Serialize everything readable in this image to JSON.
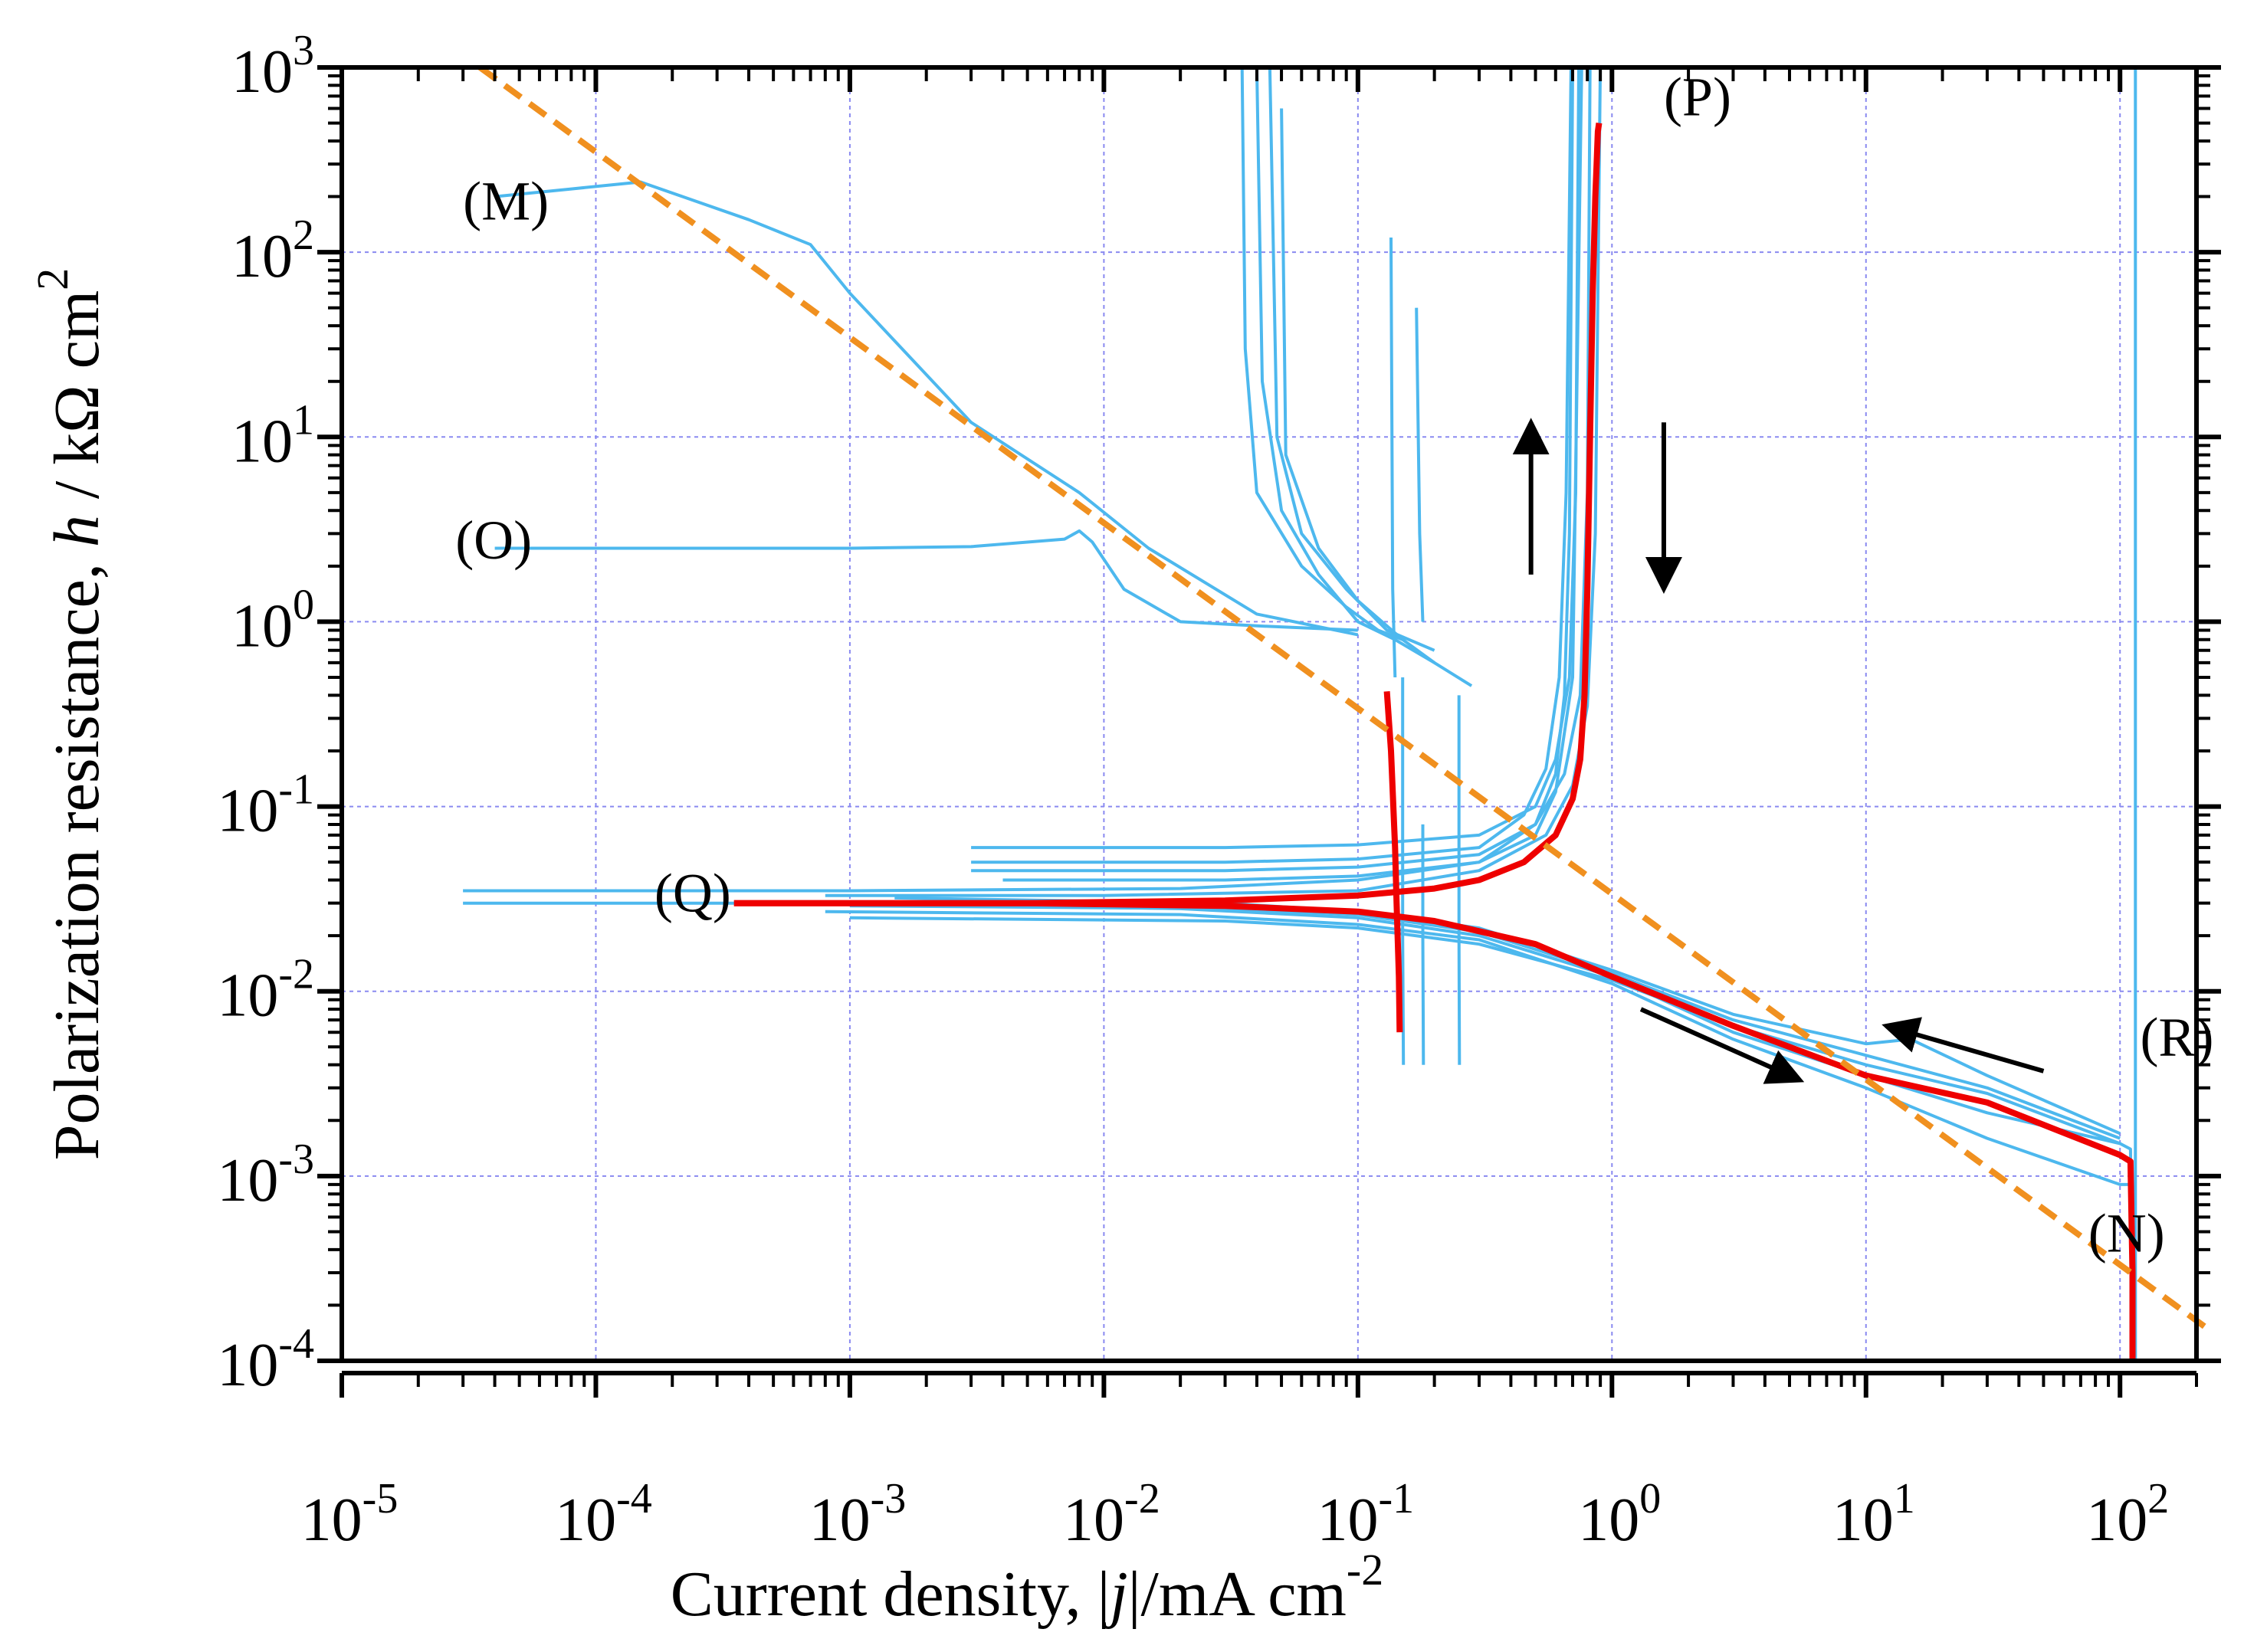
{
  "chart_data": {
    "type": "line",
    "xscale": "log",
    "yscale": "log",
    "xlim": [
      1e-05,
      200
    ],
    "ylim": [
      0.0001,
      1000
    ],
    "grid": true,
    "xlabel": {
      "prefix": "Current density, |",
      "var": "j",
      "suffix": "|/mA cm",
      "sup": "-2"
    },
    "ylabel": {
      "prefix": "Polarization resistance, ",
      "var": "h",
      "suffix": " / kΩ cm",
      "sup": "2"
    },
    "x_ticks": [
      {
        "value": 1e-05,
        "base": "10",
        "exp": "-5"
      },
      {
        "value": 0.0001,
        "base": "10",
        "exp": "-4"
      },
      {
        "value": 0.001,
        "base": "10",
        "exp": "-3"
      },
      {
        "value": 0.01,
        "base": "10",
        "exp": "-2"
      },
      {
        "value": 0.1,
        "base": "10",
        "exp": "-1"
      },
      {
        "value": 1,
        "base": "10",
        "exp": "0"
      },
      {
        "value": 10,
        "base": "10",
        "exp": "1"
      },
      {
        "value": 100,
        "base": "10",
        "exp": "2"
      }
    ],
    "y_ticks": [
      {
        "value": 0.0001,
        "base": "10",
        "exp": "-4"
      },
      {
        "value": 0.001,
        "base": "10",
        "exp": "-3"
      },
      {
        "value": 0.01,
        "base": "10",
        "exp": "-2"
      },
      {
        "value": 0.1,
        "base": "10",
        "exp": "-1"
      },
      {
        "value": 1,
        "base": "10",
        "exp": "0"
      },
      {
        "value": 10,
        "base": "10",
        "exp": "1"
      },
      {
        "value": 100,
        "base": "10",
        "exp": "2"
      },
      {
        "value": 1000,
        "base": "10",
        "exp": "3"
      }
    ],
    "colors": {
      "measured": "#4db8ee",
      "highlight": "#ee0000",
      "fit": "#f0901f",
      "grid": "#8a8af0",
      "axis": "#000000"
    },
    "fit_line": {
      "name": "fit",
      "x": [
        3.5e-05,
        220
      ],
      "y": [
        1000,
        0.00015
      ]
    },
    "series": [
      {
        "name": "M",
        "x": [
          4e-05,
          8e-05,
          0.00015,
          0.0004,
          0.0007,
          0.001,
          0.003,
          0.008,
          0.015,
          0.04,
          0.1
        ],
        "y": [
          200,
          220,
          240,
          150,
          110,
          60,
          12,
          5,
          2.5,
          1.1,
          0.85
        ]
      },
      {
        "name": "O",
        "x": [
          4e-05,
          0.0003,
          0.001,
          0.003,
          0.007,
          0.008,
          0.009,
          0.012,
          0.02,
          0.04,
          0.1
        ],
        "y": [
          2.5,
          2.5,
          2.5,
          2.55,
          2.8,
          3.1,
          2.7,
          1.5,
          1.0,
          0.95,
          0.9
        ]
      },
      {
        "name": "blue-a",
        "x": [
          0.035,
          0.036,
          0.04,
          0.06,
          0.09,
          0.12,
          0.15
        ],
        "y": [
          1000,
          30,
          5,
          2,
          1.2,
          0.9,
          0.8
        ]
      },
      {
        "name": "blue-b",
        "x": [
          0.04,
          0.042,
          0.05,
          0.07,
          0.1,
          0.14,
          0.2,
          0.28
        ],
        "y": [
          1000,
          20,
          4,
          1.8,
          1.0,
          0.8,
          0.6,
          0.45
        ]
      },
      {
        "name": "blue-c",
        "x": [
          0.045,
          0.048,
          0.06,
          0.09,
          0.13,
          0.2
        ],
        "y": [
          1000,
          10,
          3,
          1.5,
          0.9,
          0.7
        ]
      },
      {
        "name": "blue-d",
        "x": [
          0.05,
          0.052,
          0.07,
          0.1,
          0.15,
          0.2
        ],
        "y": [
          600,
          8,
          2.5,
          1.3,
          0.8,
          0.6
        ]
      },
      {
        "name": "blue-e",
        "x": [
          0.135,
          0.137,
          0.14
        ],
        "y": [
          120,
          1.5,
          0.5
        ]
      },
      {
        "name": "blue-f",
        "x": [
          0.17,
          0.175,
          0.18
        ],
        "y": [
          50,
          3,
          1
        ]
      },
      {
        "name": "blue-P1",
        "x": [
          3e-05,
          0.001,
          0.02,
          0.1,
          0.3,
          0.5,
          0.6,
          0.65,
          0.68,
          0.7
        ],
        "y": [
          0.035,
          0.035,
          0.036,
          0.04,
          0.05,
          0.08,
          0.15,
          0.4,
          3,
          1000
        ]
      },
      {
        "name": "blue-P2",
        "x": [
          0.003,
          0.03,
          0.1,
          0.3,
          0.5,
          0.6,
          0.68,
          0.72,
          0.74
        ],
        "y": [
          0.06,
          0.06,
          0.062,
          0.07,
          0.1,
          0.18,
          0.5,
          5,
          1000
        ]
      },
      {
        "name": "blue-P3",
        "x": [
          0.003,
          0.03,
          0.1,
          0.3,
          0.45,
          0.55,
          0.62,
          0.66,
          0.69
        ],
        "y": [
          0.05,
          0.05,
          0.052,
          0.06,
          0.09,
          0.16,
          0.5,
          5,
          1000
        ]
      },
      {
        "name": "blue-P4",
        "x": [
          0.003,
          0.03,
          0.1,
          0.3,
          0.5,
          0.65,
          0.75,
          0.8,
          0.82
        ],
        "y": [
          0.045,
          0.045,
          0.047,
          0.055,
          0.08,
          0.15,
          0.4,
          5,
          1000
        ]
      },
      {
        "name": "blue-P5",
        "x": [
          0.004,
          0.03,
          0.1,
          0.3,
          0.5,
          0.6,
          0.7,
          0.76
        ],
        "y": [
          0.04,
          0.04,
          0.042,
          0.05,
          0.07,
          0.12,
          0.5,
          1000
        ]
      },
      {
        "name": "blue-P6",
        "x": [
          0.0008,
          0.01,
          0.1,
          0.3,
          0.55,
          0.7,
          0.8,
          0.86,
          0.9
        ],
        "y": [
          0.033,
          0.033,
          0.035,
          0.045,
          0.07,
          0.13,
          0.35,
          3,
          1000
        ]
      },
      {
        "name": "blue-N1",
        "x": [
          3e-05,
          0.001,
          0.02,
          0.1,
          0.3,
          1,
          3,
          10,
          30,
          100,
          110,
          111,
          112
        ],
        "y": [
          0.03,
          0.03,
          0.028,
          0.025,
          0.02,
          0.012,
          0.006,
          0.0035,
          0.0022,
          0.0015,
          0.0014,
          0.0003,
          0.0001
        ]
      },
      {
        "name": "blue-N2",
        "x": [
          0.0008,
          0.02,
          0.1,
          0.3,
          1,
          3,
          10,
          30,
          100,
          110
        ],
        "y": [
          0.027,
          0.026,
          0.023,
          0.019,
          0.011,
          0.0055,
          0.003,
          0.0016,
          0.0009,
          0.0009
        ]
      },
      {
        "name": "blue-N3",
        "x": [
          0.001,
          0.03,
          0.1,
          0.3,
          1,
          3,
          10,
          30,
          100
        ],
        "y": [
          0.025,
          0.024,
          0.022,
          0.018,
          0.0115,
          0.0065,
          0.004,
          0.0028,
          0.0015
        ]
      },
      {
        "name": "blue-N4",
        "x": [
          0.0015,
          0.03,
          0.1,
          0.3,
          1,
          3,
          10,
          15,
          30,
          100
        ],
        "y": [
          0.032,
          0.03,
          0.027,
          0.022,
          0.013,
          0.0075,
          0.0052,
          0.0055,
          0.0035,
          0.0017
        ]
      },
      {
        "name": "blue-N5",
        "x": [
          0.001,
          0.03,
          0.1,
          0.3,
          1,
          3,
          10,
          30,
          100
        ],
        "y": [
          0.029,
          0.028,
          0.026,
          0.021,
          0.0125,
          0.007,
          0.0045,
          0.003,
          0.0016
        ]
      },
      {
        "name": "blue-drop-a",
        "x": [
          0.15,
          0.15,
          0.151
        ],
        "y": [
          0.5,
          0.02,
          0.004
        ]
      },
      {
        "name": "blue-drop-b",
        "x": [
          0.18,
          0.18,
          0.181
        ],
        "y": [
          0.08,
          0.02,
          0.004
        ]
      },
      {
        "name": "blue-drop-c",
        "x": [
          0.25,
          0.25,
          0.251
        ],
        "y": [
          0.4,
          0.02,
          0.004
        ]
      },
      {
        "name": "blue-wall",
        "x": [
          115,
          115
        ],
        "y": [
          1000,
          0.0001
        ]
      },
      {
        "name": "red-P",
        "x": [
          0.00035,
          0.005,
          0.03,
          0.1,
          0.2,
          0.3,
          0.45,
          0.6,
          0.7,
          0.75,
          0.78,
          0.8,
          0.82,
          0.84,
          0.86,
          0.87,
          0.88,
          0.89
        ],
        "y": [
          0.03,
          0.03,
          0.031,
          0.033,
          0.036,
          0.04,
          0.05,
          0.07,
          0.11,
          0.18,
          0.4,
          1.5,
          10,
          60,
          200,
          300,
          450,
          500
        ]
      },
      {
        "name": "red-N",
        "x": [
          0.00035,
          0.005,
          0.03,
          0.1,
          0.2,
          0.5,
          1,
          3,
          10,
          30,
          100,
          110,
          112,
          112
        ],
        "y": [
          0.03,
          0.03,
          0.029,
          0.027,
          0.024,
          0.018,
          0.012,
          0.0065,
          0.0035,
          0.0025,
          0.0013,
          0.0012,
          0.0003,
          0.0001
        ]
      },
      {
        "name": "red-Q",
        "x": [
          0.13,
          0.135,
          0.14,
          0.142,
          0.145,
          0.146
        ],
        "y": [
          0.42,
          0.2,
          0.06,
          0.03,
          0.012,
          0.006
        ]
      }
    ],
    "annotations": [
      {
        "text": "(M)",
        "x": 3e-05,
        "y": 150
      },
      {
        "text": "(O)",
        "x": 2.8e-05,
        "y": 2.2
      },
      {
        "text": "(P)",
        "x": 1.6,
        "y": 550
      },
      {
        "text": "(Q)",
        "x": 0.00017,
        "y": 0.027
      },
      {
        "text": "(R)",
        "x": 120,
        "y": 0.0045
      },
      {
        "text": "(N)",
        "x": 75,
        "y": 0.00039
      }
    ],
    "arrows": [
      {
        "name": "arrow-up",
        "x1": 0.48,
        "y1": 1.8,
        "x2": 0.48,
        "y2": 12
      },
      {
        "name": "arrow-down",
        "x1": 1.6,
        "y1": 12,
        "x2": 1.6,
        "y2": 1.5
      },
      {
        "name": "arrow-right-down",
        "x1": 1.3,
        "y1": 0.008,
        "x2": 5.5,
        "y2": 0.0033
      },
      {
        "name": "arrow-left-up",
        "x1": 50,
        "y1": 0.0037,
        "x2": 12,
        "y2": 0.0065
      }
    ]
  }
}
